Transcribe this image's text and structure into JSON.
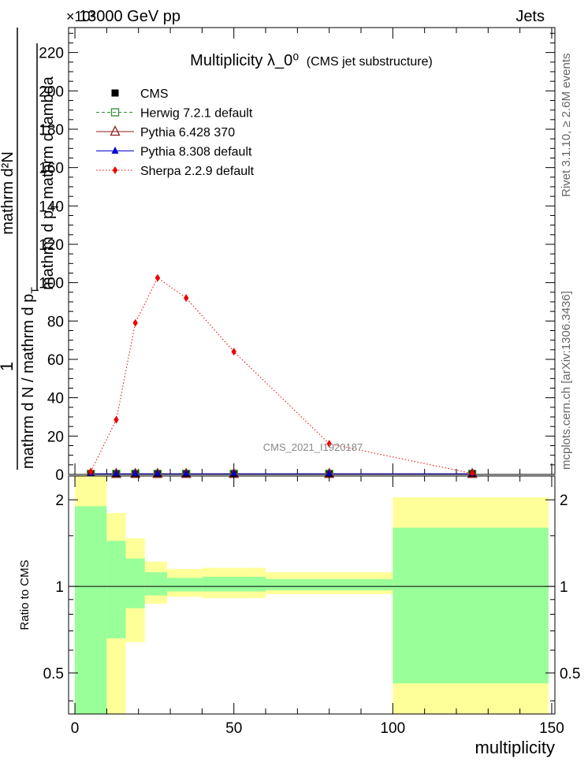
{
  "header": {
    "left": "13000 GeV pp",
    "right": "Jets",
    "exponent": "×10³"
  },
  "side_labels": {
    "rivet": "Rivet 3.1.10, ≥ 2.6M events",
    "mcplots": "mcplots.cern.ch [arXiv:1306.3436]"
  },
  "watermark": "CMS_2021_I1920187",
  "chart_data": [
    {
      "type": "line",
      "title": "Multiplicity  λ_0⁰",
      "subtitle": "(CMS jet substructure)",
      "ylabel_numerator": "1",
      "ylabel_denominator_a": "mathrm d N / mathrm d p",
      "ylabel_sub_a": "T",
      "ylabel_numerator_b": "mathrm d²N",
      "ylabel_denominator_b": "mathrm d p",
      "ylabel_sub_b": "T",
      "ylabel_tail_b": " mathrm d lambda",
      "xlim": [
        -2,
        151
      ],
      "ylim": [
        0,
        233
      ],
      "y_scale_factor": 1000,
      "yticks": [
        0,
        20,
        40,
        60,
        80,
        100,
        120,
        140,
        160,
        180,
        200,
        220
      ],
      "grid": false,
      "legend_position": "top-left",
      "series": [
        {
          "name": "CMS",
          "color": "#000000",
          "marker": "square",
          "line": "none",
          "x": [
            5,
            13,
            19,
            26,
            35,
            50,
            80,
            125
          ],
          "y": [
            0.3,
            0.3,
            0.3,
            0.3,
            0.3,
            0.3,
            0.3,
            0.3
          ]
        },
        {
          "name": "Herwig 7.2.1 default",
          "color": "#2f8f2f",
          "marker": "open-square",
          "line": "dashed",
          "x": [
            5,
            13,
            19,
            26,
            35,
            50,
            80,
            125
          ],
          "y": [
            0.3,
            0.3,
            0.3,
            0.3,
            0.3,
            0.3,
            0.3,
            0.3
          ]
        },
        {
          "name": "Pythia 6.428 370",
          "color": "#8b1a1a",
          "marker": "open-triangle",
          "line": "solid",
          "x": [
            5,
            13,
            19,
            26,
            35,
            50,
            80,
            125
          ],
          "y": [
            0.3,
            0.3,
            0.3,
            0.3,
            0.3,
            0.3,
            0.3,
            0.3
          ]
        },
        {
          "name": "Pythia 8.308 default",
          "color": "#0000cc",
          "marker": "triangle",
          "line": "solid",
          "x": [
            5,
            13,
            19,
            26,
            35,
            50,
            80,
            125
          ],
          "y": [
            0.3,
            0.3,
            0.3,
            0.3,
            0.3,
            0.3,
            0.3,
            0.3
          ]
        },
        {
          "name": "Sherpa 2.2.9 default",
          "color": "#ee0000",
          "marker": "diamond",
          "line": "dotted",
          "x": [
            5,
            13,
            19,
            26,
            35,
            50,
            80,
            125
          ],
          "y": [
            1.5,
            28.5,
            79,
            102.5,
            92,
            64,
            16,
            0.5
          ]
        }
      ]
    },
    {
      "type": "area",
      "ylabel": "Ratio to CMS",
      "xlabel": "multiplicity",
      "xlim": [
        -2,
        151
      ],
      "ylim": [
        0.36,
        2.42
      ],
      "yscale": "log",
      "xticks": [
        0,
        50,
        100,
        150
      ],
      "yticks": [
        0.5,
        1,
        2
      ],
      "reference_line": 1,
      "bands": [
        {
          "x0": 0,
          "x1": 10,
          "green": [
            0.36,
            1.9
          ],
          "yellow": [
            0.36,
            2.42
          ]
        },
        {
          "x0": 10,
          "x1": 16,
          "green": [
            0.66,
            1.44
          ],
          "yellow": [
            0.36,
            1.8
          ]
        },
        {
          "x0": 16,
          "x1": 22,
          "green": [
            0.84,
            1.25
          ],
          "yellow": [
            0.64,
            1.47
          ]
        },
        {
          "x0": 22,
          "x1": 29,
          "green": [
            0.93,
            1.12
          ],
          "yellow": [
            0.87,
            1.22
          ]
        },
        {
          "x0": 29,
          "x1": 40,
          "green": [
            0.96,
            1.07
          ],
          "yellow": [
            0.92,
            1.15
          ]
        },
        {
          "x0": 40,
          "x1": 60,
          "green": [
            0.96,
            1.08
          ],
          "yellow": [
            0.91,
            1.16
          ]
        },
        {
          "x0": 60,
          "x1": 100,
          "green": [
            0.97,
            1.06
          ],
          "yellow": [
            0.94,
            1.12
          ]
        },
        {
          "x0": 100,
          "x1": 149,
          "green": [
            0.46,
            1.6
          ],
          "yellow": [
            0.36,
            2.04
          ]
        }
      ]
    }
  ]
}
